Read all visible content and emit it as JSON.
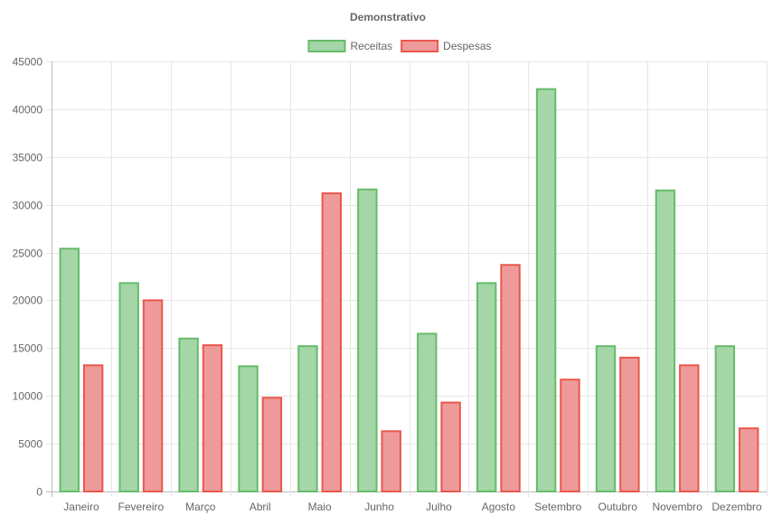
{
  "chart_data": {
    "type": "bar",
    "title": "Demonstrativo",
    "categories": [
      "Janeiro",
      "Fevereiro",
      "Março",
      "Abril",
      "Maio",
      "Junho",
      "Julho",
      "Agosto",
      "Setembro",
      "Outubro",
      "Novembro",
      "Dezembro"
    ],
    "series": [
      {
        "name": "Receitas",
        "fill": "#a5d6a7",
        "stroke": "#66bb6a",
        "values": [
          25500,
          21900,
          16100,
          13200,
          15300,
          31700,
          16600,
          21900,
          42200,
          15300,
          31600,
          15300
        ]
      },
      {
        "name": "Despesas",
        "fill": "#ef9a9a",
        "stroke": "#e8584c",
        "values": [
          13300,
          20100,
          15400,
          9900,
          31300,
          6400,
          9400,
          23800,
          11800,
          14100,
          13300,
          6700
        ]
      }
    ],
    "ylim": [
      0,
      45000
    ],
    "y_ticks": [
      0,
      5000,
      10000,
      15000,
      20000,
      25000,
      30000,
      35000,
      40000,
      45000
    ],
    "xlabel": "",
    "ylabel": "",
    "grid": true,
    "legend_position": "top-center"
  }
}
